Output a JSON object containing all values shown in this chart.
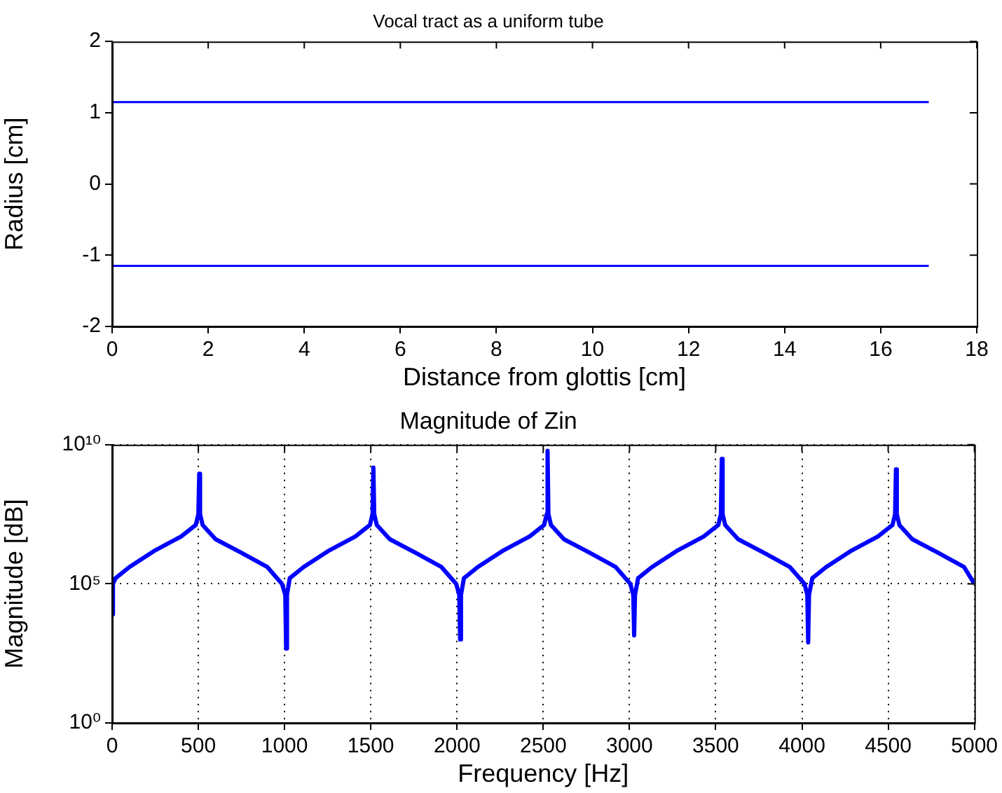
{
  "chart_data": [
    {
      "type": "line",
      "title": "Vocal tract as a uniform tube",
      "xlabel": "Distance from glottis [cm]",
      "ylabel": "Radius [cm]",
      "xlim": [
        0,
        18
      ],
      "xticks": [
        0,
        2,
        4,
        6,
        8,
        10,
        12,
        14,
        16,
        18
      ],
      "ylim": [
        -2,
        2
      ],
      "yticks": [
        -2,
        -1,
        0,
        1,
        2
      ],
      "grid": false,
      "legend": false,
      "marker": "none",
      "series": [
        {
          "color": "#0000ff",
          "x": [
            0,
            17
          ],
          "values": [
            1.15,
            1.15
          ]
        },
        {
          "color": "#0000ff",
          "x": [
            0,
            17
          ],
          "values": [
            -1.15,
            -1.15
          ]
        }
      ]
    },
    {
      "type": "line",
      "title": "Magnitude of Zin",
      "xlabel": "Frequency [Hz]",
      "ylabel": "Magnitude [dB]",
      "log": "y",
      "xlim": [
        0,
        5000
      ],
      "xticks": [
        0,
        500,
        1000,
        1500,
        2000,
        2500,
        3000,
        3500,
        4000,
        4500,
        5000
      ],
      "ylim": [
        1,
        10000000000
      ],
      "yticks": [
        {
          "value": 1,
          "label": "10⁰"
        },
        {
          "value": 100000,
          "label": "10⁵"
        },
        {
          "value": 10000000000,
          "label": "10¹⁰"
        }
      ],
      "grid": true,
      "legend": false,
      "marker": "none",
      "series": [
        {
          "color": "#0000ff",
          "x": [
            0,
            5,
            20,
            100,
            250,
            400,
            485,
            500,
            505,
            510,
            525,
            600,
            750,
            900,
            985,
            1004,
            1009,
            1014,
            1030,
            1110,
            1260,
            1410,
            1495,
            1510,
            1515,
            1520,
            1535,
            1610,
            1760,
            1910,
            1995,
            2013,
            2018,
            2023,
            2040,
            2120,
            2270,
            2420,
            2505,
            2520,
            2525,
            2530,
            2545,
            2620,
            2770,
            2920,
            3005,
            3022,
            3027,
            3032,
            3050,
            3130,
            3280,
            3430,
            3515,
            3530,
            3535,
            3540,
            3555,
            3630,
            3780,
            3930,
            4015,
            4031,
            4036,
            4041,
            4060,
            4140,
            4290,
            4440,
            4525,
            4540,
            4545,
            4550,
            4565,
            4640,
            4790,
            4940,
            5000
          ],
          "values": [
            8000,
            100000,
            160000,
            400000,
            1600000,
            5000000,
            13000000,
            32000000,
            900000000,
            32000000,
            13000000,
            4000000,
            1300000,
            400000,
            100000,
            40000,
            470,
            40000,
            160000,
            400000,
            1600000,
            5000000,
            13000000,
            32000000,
            1500000000,
            32000000,
            13000000,
            4000000,
            1300000,
            400000,
            100000,
            40000,
            1000,
            40000,
            160000,
            400000,
            1600000,
            5000000,
            13000000,
            32000000,
            6000000000,
            32000000,
            13000000,
            4000000,
            1300000,
            400000,
            100000,
            40000,
            1400,
            40000,
            160000,
            400000,
            1600000,
            5000000,
            13000000,
            32000000,
            3100000000,
            32000000,
            13000000,
            4000000,
            1300000,
            400000,
            100000,
            40000,
            790,
            40000,
            160000,
            400000,
            1600000,
            5000000,
            13000000,
            32000000,
            1300000000,
            32000000,
            13000000,
            4000000,
            1300000,
            400000,
            100000
          ]
        }
      ]
    }
  ]
}
